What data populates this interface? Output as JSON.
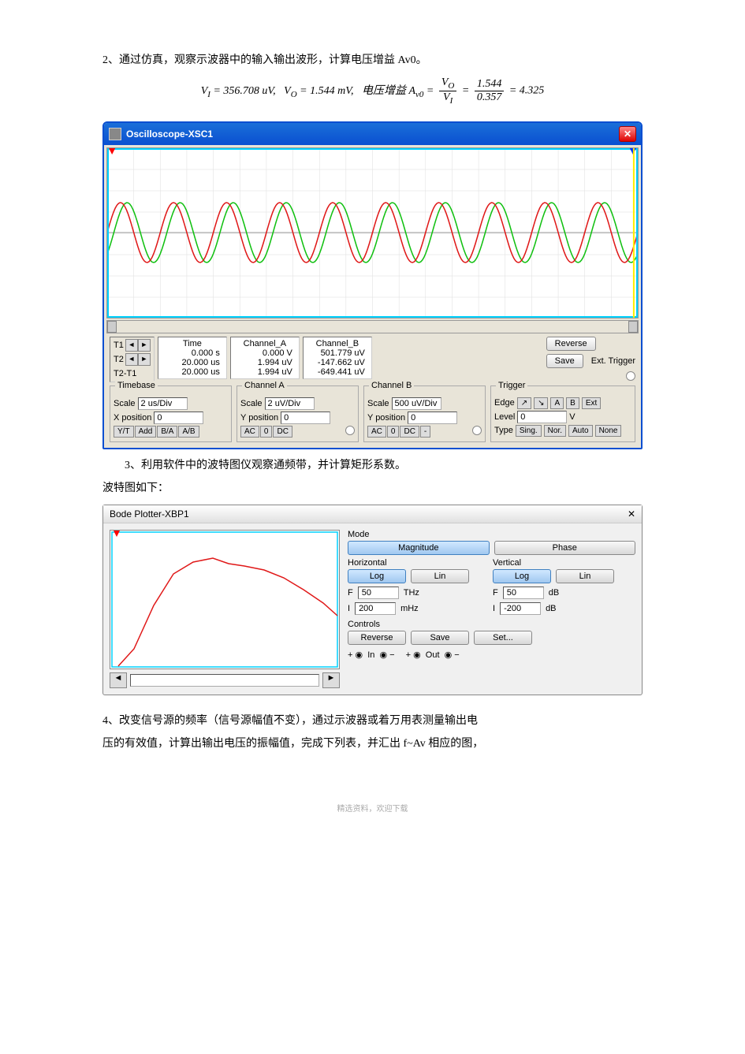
{
  "text": {
    "p1": "2、通过仿真，观察示波器中的输入输出波形，计算电压增益 Av0。",
    "vi": "VI = 356.708 uV,",
    "vo": "VO = 1.544 mV,",
    "gainlabel": "电压增益 Av0 =",
    "fracVoVi_n": "VO",
    "fracVoVi_d": "VI",
    "fracnum_n": "1.544",
    "fracnum_d": "0.357",
    "res": "= 4.325",
    "p3a": "3、利用软件中的波特图仪观察通频带，并计算矩形系数。",
    "p3b": "波特图如下：",
    "p4a": "4、改变信号源的频率（信号源幅值不变），通过示波器或着万用表测量输出电",
    "p4b": "压的有效值，计算出输出电压的振幅值，完成下列表，并汇出 f~Av 相应的图，",
    "footer": "精选资料，欢迎下载"
  },
  "osc": {
    "title": "Oscilloscope-XSC1",
    "waveform": {
      "bg": "#ffffff",
      "grid": "#cccccc",
      "chA_color": "#e01818",
      "chB_color": "#10c010",
      "cursorL": "#ff0000",
      "cursorR": "#0030ff",
      "border": "#00d0ff",
      "amplitude": 38,
      "vcenter": 107,
      "periods": 10,
      "phase_deg": 45
    },
    "t1": "T1",
    "t2": "T2",
    "t21": "T2-T1",
    "hdrs": {
      "time": "Time",
      "cha": "Channel_A",
      "chb": "Channel_B"
    },
    "vals": {
      "t1_time": "0.000 s",
      "t1_a": "0.000 V",
      "t1_b": "501.779 uV",
      "t2_time": "20.000 us",
      "t2_a": "1.994 uV",
      "t2_b": "-147.662 uV",
      "dt_time": "20.000 us",
      "dt_a": "1.994 uV",
      "dt_b": "-649.441 uV"
    },
    "reverse": "Reverse",
    "save": "Save",
    "ext": "Ext. Trigger",
    "timebase": {
      "title": "Timebase",
      "scale_l": "Scale",
      "scale_v": "2 us/Div",
      "xpos_l": "X position",
      "xpos_v": "0",
      "yt": "Y/T",
      "add": "Add",
      "ba": "B/A",
      "ab": "A/B"
    },
    "chA": {
      "title": "Channel A",
      "scale_l": "Scale",
      "scale_v": "2 uV/Div",
      "ypos_l": "Y position",
      "ypos_v": "0",
      "ac": "AC",
      "zero": "0",
      "dc": "DC"
    },
    "chB": {
      "title": "Channel B",
      "scale_l": "Scale",
      "scale_v": "500 uV/Div",
      "ypos_l": "Y position",
      "ypos_v": "0",
      "ac": "AC",
      "zero": "0",
      "dc": "DC",
      "minus": "-"
    },
    "trig": {
      "title": "Trigger",
      "edge_l": "Edge",
      "level_l": "Level",
      "level_v": "0",
      "level_u": "V",
      "type_l": "Type",
      "rise": "↗",
      "fall": "↘",
      "a": "A",
      "b": "B",
      "ext": "Ext",
      "sing": "Sing.",
      "nor": "Nor.",
      "auto": "Auto",
      "none": "None"
    }
  },
  "bode": {
    "title": "Bode Plotter-XBP1",
    "close": "✕",
    "curve": {
      "color": "#e01818",
      "bg": "#ffffff",
      "border": "#00d0ff",
      "points": [
        [
          10,
          172
        ],
        [
          30,
          150
        ],
        [
          55,
          95
        ],
        [
          80,
          55
        ],
        [
          105,
          40
        ],
        [
          130,
          35
        ],
        [
          150,
          42
        ],
        [
          170,
          45
        ],
        [
          195,
          50
        ],
        [
          220,
          60
        ],
        [
          245,
          75
        ],
        [
          270,
          92
        ],
        [
          288,
          108
        ]
      ]
    },
    "mode": "Mode",
    "mag": "Magnitude",
    "phase": "Phase",
    "horiz": "Horizontal",
    "vert": "Vertical",
    "log": "Log",
    "lin": "Lin",
    "f": "F",
    "i": "I",
    "h_f": "50",
    "h_f_u": "THz",
    "h_i": "200",
    "h_i_u": "mHz",
    "v_f": "50",
    "v_f_u": "dB",
    "v_i": "-200",
    "v_i_u": "dB",
    "controls": "Controls",
    "reverse": "Reverse",
    "save": "Save",
    "set": "Set...",
    "in": "In",
    "out": "Out",
    "plus": "+",
    "minus": "−"
  }
}
